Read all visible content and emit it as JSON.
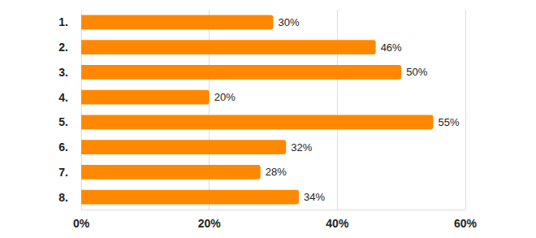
{
  "chart_data": {
    "type": "bar",
    "orientation": "horizontal",
    "categories": [
      "1.",
      "2.",
      "3.",
      "4.",
      "5.",
      "6.",
      "7.",
      "8."
    ],
    "values": [
      30,
      46,
      50,
      20,
      55,
      32,
      28,
      34
    ],
    "value_labels": [
      "30%",
      "46%",
      "50%",
      "20%",
      "55%",
      "32%",
      "28%",
      "34%"
    ],
    "color": "#ff8800",
    "xlim": [
      0,
      60
    ],
    "xticks": [
      {
        "value": 0,
        "label": "0%"
      },
      {
        "value": 20,
        "label": "20%"
      },
      {
        "value": 40,
        "label": "40%"
      },
      {
        "value": 60,
        "label": "60%"
      }
    ],
    "grid": true,
    "data_labels": true
  }
}
